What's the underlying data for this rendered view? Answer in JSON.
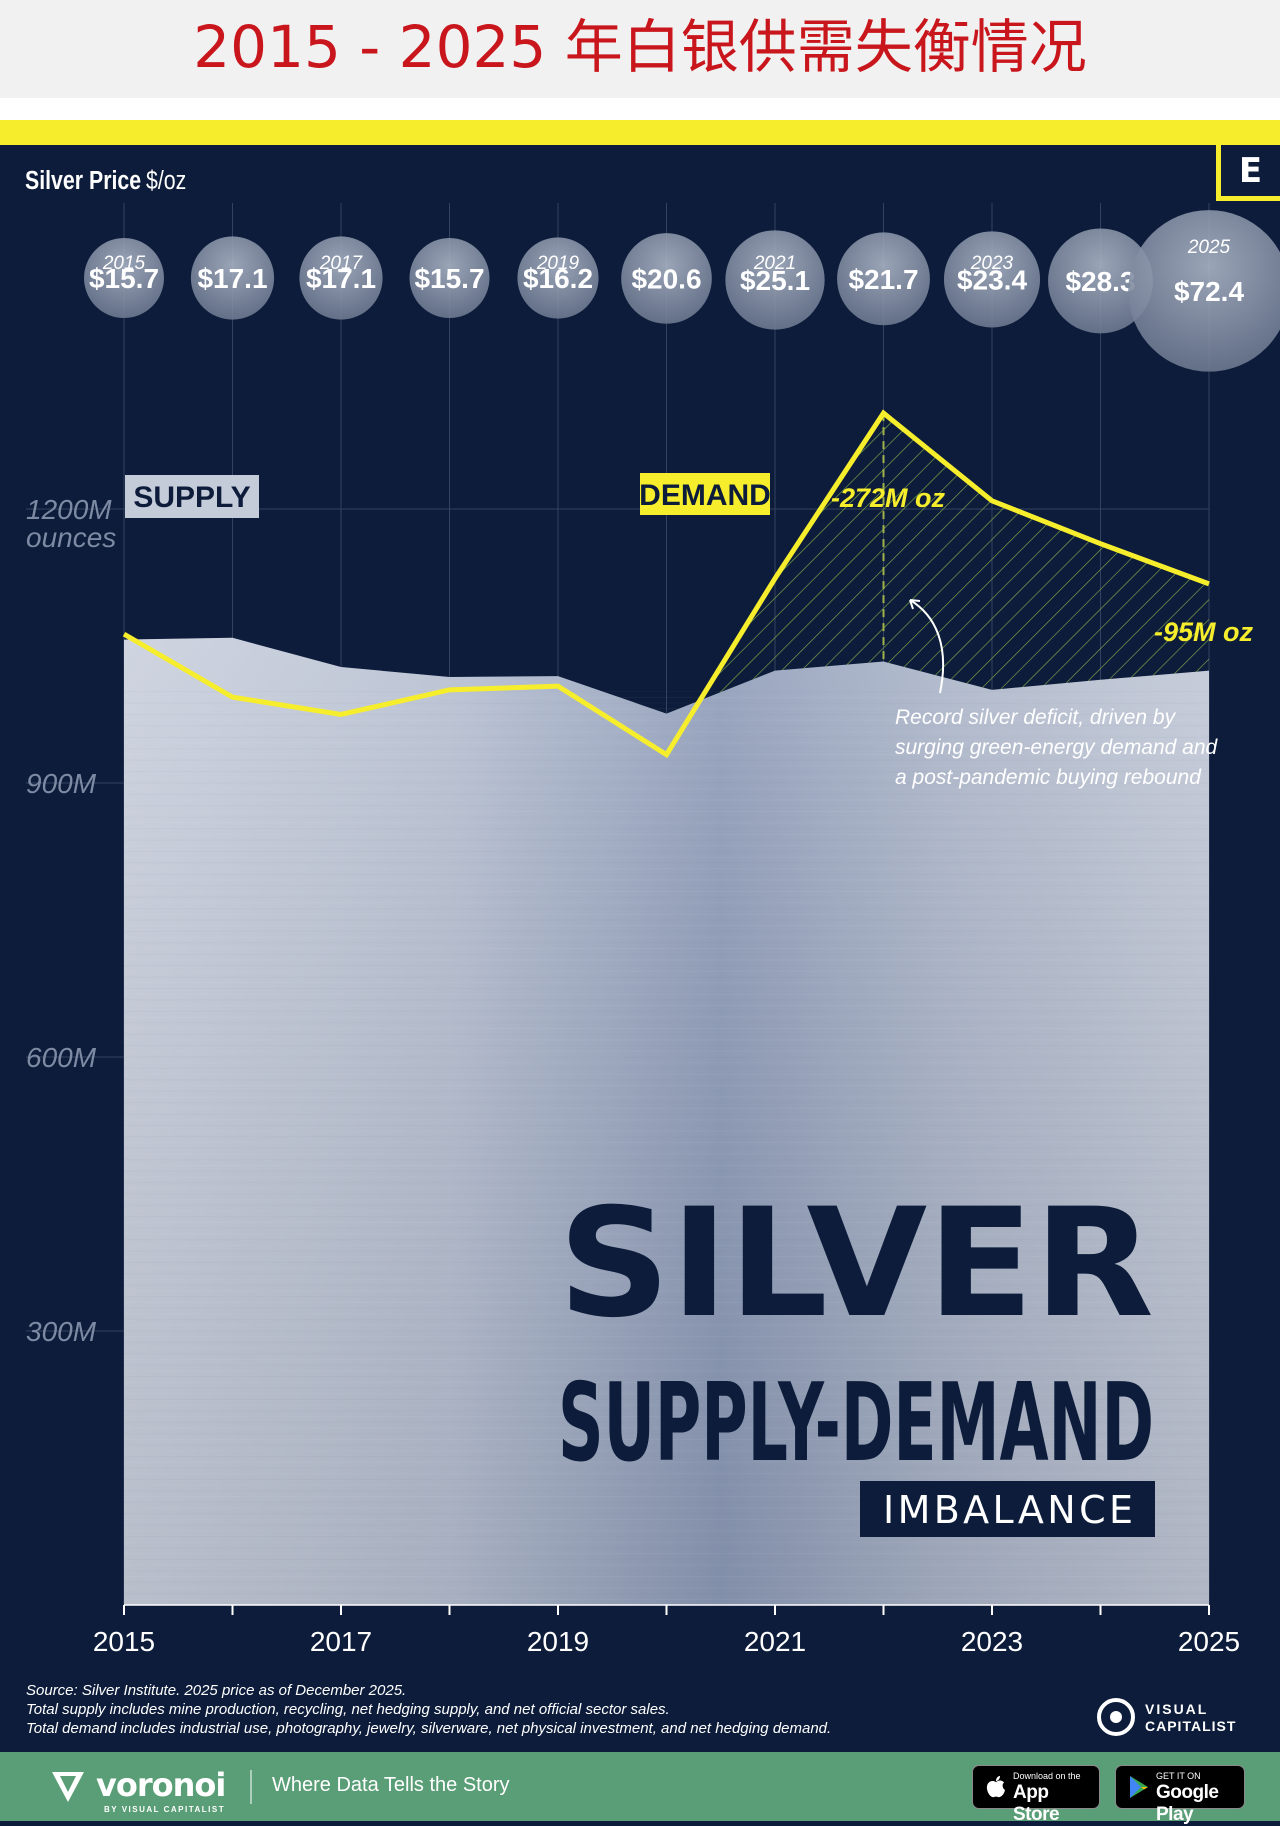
{
  "header": {
    "title": "2015 - 2025 年白银供需失衡情况"
  },
  "logo": {
    "letter": "E"
  },
  "price_row": {
    "label": "Silver Price",
    "unit": "$/oz"
  },
  "headline": {
    "line1": "SILVER",
    "line2": "SUPPLY-DEMAND",
    "line3": "IMBALANCE"
  },
  "annotations": {
    "peak_label": "-272M oz",
    "last_label": "-95M oz",
    "note_lines": [
      "Record silver deficit, driven by",
      "surging green-energy demand and",
      "a post-pandemic buying rebound"
    ]
  },
  "source": {
    "lines": [
      "Source: Silver Institute. 2025 price as of December 2025.",
      "Total supply includes mine production, recycling, net hedging supply, and net official sector sales.",
      "Total demand includes industrial use, photography, jewelry, silverware, net physical investment, and net hedging demand."
    ],
    "credit_line1": "VISUAL",
    "credit_line2": "CAPITALIST"
  },
  "footer": {
    "brand": "voronoi",
    "brand_sub": "BY VISUAL CAPITALIST",
    "tagline": "Where Data Tells the Story",
    "app_store_small": "Download on the",
    "app_store_big": "App Store",
    "google_small": "GET IT ON",
    "google_big": "Google Play"
  },
  "colors": {
    "background": "#0c1c3a",
    "accent": "#f6ee2c",
    "title": "#c9161c",
    "footer": "#5a9e77",
    "supply_fill": "#b9c2d4"
  },
  "chart_data": {
    "type": "area",
    "years": [
      2015,
      2016,
      2017,
      2018,
      2019,
      2020,
      2021,
      2022,
      2023,
      2024,
      2025
    ],
    "x_tick_labels": [
      "2015",
      "2017",
      "2019",
      "2021",
      "2023",
      "2025"
    ],
    "ylim": [
      0,
      1200
    ],
    "y_ticks": [
      {
        "value": 1200,
        "label": "1200M",
        "sublabel": "ounces"
      },
      {
        "value": 900,
        "label": "900M"
      },
      {
        "value": 600,
        "label": "600M"
      },
      {
        "value": 300,
        "label": "300M"
      }
    ],
    "series": [
      {
        "name": "SUPPLY",
        "values": [
          1057,
          1059,
          1027,
          1016,
          1017,
          976,
          1023,
          1033,
          1002,
          1013,
          1023
        ]
      },
      {
        "name": "DEMAND",
        "values": [
          1063,
          994,
          975,
          1002,
          1006,
          931,
          1124,
          1305,
          1209,
          1162,
          1118
        ]
      }
    ],
    "prices": {
      "label_years": [
        "2015",
        "",
        "2017",
        "",
        "2019",
        "",
        "2021",
        "",
        "2023",
        "",
        "2025"
      ],
      "values": [
        "$15.7",
        "$17.1",
        "$17.1",
        "$15.7",
        "$16.2",
        "$20.6",
        "$25.1",
        "$21.7",
        "$23.4",
        "$28.3",
        "$72.4"
      ],
      "numeric": [
        15.7,
        17.1,
        17.1,
        15.7,
        16.2,
        20.6,
        25.1,
        21.7,
        23.4,
        28.3,
        72.4
      ]
    },
    "grid": true
  }
}
